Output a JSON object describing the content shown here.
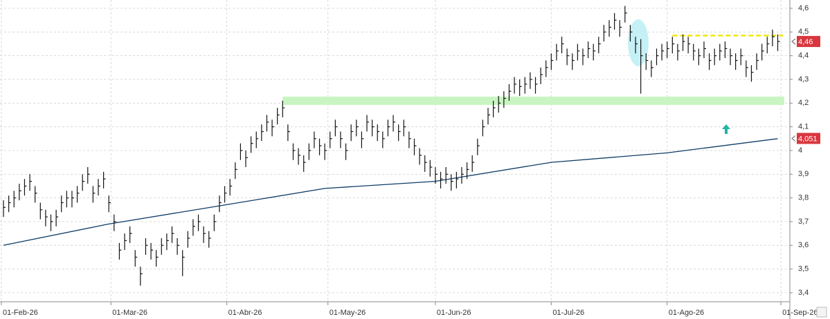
{
  "chart_data": {
    "type": "ohlc",
    "color": "#111111",
    "high": [
      3.79,
      3.81,
      3.83,
      3.86,
      3.88,
      3.9,
      3.85,
      3.78,
      3.75,
      3.73,
      3.75,
      3.81,
      3.83,
      3.83,
      3.85,
      3.9,
      3.93,
      3.85,
      3.88,
      3.91,
      3.81,
      3.73,
      3.61,
      3.65,
      3.68,
      3.58,
      3.51,
      3.63,
      3.61,
      3.58,
      3.63,
      3.65,
      3.68,
      3.63,
      3.58,
      3.66,
      3.71,
      3.73,
      3.68,
      3.66,
      3.73,
      3.81,
      3.85,
      3.88,
      3.95,
      4.03,
      4.0,
      4.06,
      4.08,
      4.11,
      4.15,
      4.13,
      4.18,
      4.21,
      4.11,
      4.03,
      4.01,
      3.98,
      4.03,
      4.08,
      4.05,
      4.03,
      4.08,
      4.13,
      4.08,
      4.03,
      4.11,
      4.13,
      4.08,
      4.15,
      4.13,
      4.11,
      4.08,
      4.13,
      4.15,
      4.11,
      4.13,
      4.08,
      4.05,
      4.01,
      3.98,
      3.96,
      3.93,
      3.91,
      3.93,
      3.9,
      3.91,
      3.93,
      3.95,
      3.98,
      4.05,
      4.13,
      4.18,
      4.21,
      4.23,
      4.25,
      4.28,
      4.31,
      4.3,
      4.31,
      4.33,
      4.31,
      4.35,
      4.38,
      4.41,
      4.45,
      4.48,
      4.43,
      4.41,
      4.45,
      4.43,
      4.46,
      4.45,
      4.48,
      4.53,
      4.55,
      4.58,
      4.55,
      4.61,
      4.53,
      4.48,
      4.47,
      4.41,
      4.38,
      4.43,
      4.45,
      4.46,
      4.48,
      4.45,
      4.49,
      4.48,
      4.45,
      4.43,
      4.46,
      4.41,
      4.43,
      4.45,
      4.46,
      4.43,
      4.41,
      4.43,
      4.38,
      4.36,
      4.41,
      4.45,
      4.48,
      4.51,
      4.49
    ],
    "low": [
      3.72,
      3.74,
      3.76,
      3.79,
      3.81,
      3.83,
      3.78,
      3.71,
      3.68,
      3.66,
      3.68,
      3.74,
      3.76,
      3.76,
      3.78,
      3.83,
      3.86,
      3.78,
      3.81,
      3.84,
      3.74,
      3.66,
      3.54,
      3.58,
      3.61,
      3.51,
      3.43,
      3.56,
      3.54,
      3.51,
      3.56,
      3.58,
      3.61,
      3.56,
      3.47,
      3.59,
      3.64,
      3.66,
      3.61,
      3.59,
      3.66,
      3.74,
      3.78,
      3.81,
      3.88,
      3.96,
      3.93,
      3.99,
      4.01,
      4.04,
      4.08,
      4.06,
      4.11,
      4.14,
      4.04,
      3.96,
      3.94,
      3.91,
      3.96,
      4.01,
      3.98,
      3.96,
      4.01,
      4.06,
      4.01,
      3.96,
      4.04,
      4.06,
      4.01,
      4.08,
      4.06,
      4.04,
      4.01,
      4.06,
      4.08,
      4.04,
      4.06,
      4.01,
      3.98,
      3.94,
      3.91,
      3.89,
      3.86,
      3.84,
      3.86,
      3.83,
      3.84,
      3.86,
      3.88,
      3.91,
      3.98,
      4.06,
      4.11,
      4.14,
      4.16,
      4.18,
      4.21,
      4.24,
      4.23,
      4.24,
      4.26,
      4.24,
      4.28,
      4.31,
      4.34,
      4.38,
      4.41,
      4.36,
      4.34,
      4.38,
      4.36,
      4.39,
      4.38,
      4.41,
      4.46,
      4.48,
      4.51,
      4.48,
      4.54,
      4.46,
      4.41,
      4.24,
      4.34,
      4.31,
      4.36,
      4.38,
      4.39,
      4.41,
      4.38,
      4.42,
      4.41,
      4.38,
      4.36,
      4.39,
      4.34,
      4.36,
      4.38,
      4.39,
      4.36,
      4.34,
      4.36,
      4.31,
      4.29,
      4.34,
      4.38,
      4.41,
      4.44,
      4.42
    ],
    "close": [
      3.76,
      3.78,
      3.8,
      3.83,
      3.85,
      3.87,
      3.82,
      3.75,
      3.72,
      3.7,
      3.72,
      3.78,
      3.8,
      3.8,
      3.82,
      3.87,
      3.9,
      3.82,
      3.85,
      3.88,
      3.78,
      3.7,
      3.58,
      3.62,
      3.65,
      3.55,
      3.48,
      3.6,
      3.58,
      3.55,
      3.6,
      3.62,
      3.65,
      3.6,
      3.55,
      3.63,
      3.68,
      3.7,
      3.65,
      3.63,
      3.7,
      3.78,
      3.82,
      3.85,
      3.92,
      4.0,
      3.97,
      4.03,
      4.05,
      4.08,
      4.12,
      4.1,
      4.15,
      4.18,
      4.08,
      4.0,
      3.98,
      3.95,
      4.0,
      4.05,
      4.02,
      4.0,
      4.05,
      4.1,
      4.05,
      4.0,
      4.08,
      4.1,
      4.05,
      4.12,
      4.1,
      4.08,
      4.05,
      4.1,
      4.12,
      4.08,
      4.1,
      4.05,
      4.02,
      3.98,
      3.95,
      3.93,
      3.9,
      3.88,
      3.9,
      3.87,
      3.88,
      3.9,
      3.92,
      3.95,
      4.02,
      4.1,
      4.15,
      4.18,
      4.2,
      4.22,
      4.25,
      4.28,
      4.27,
      4.28,
      4.3,
      4.28,
      4.32,
      4.35,
      4.38,
      4.42,
      4.45,
      4.4,
      4.38,
      4.42,
      4.4,
      4.43,
      4.42,
      4.45,
      4.5,
      4.52,
      4.55,
      4.52,
      4.58,
      4.5,
      4.45,
      4.4,
      4.38,
      4.35,
      4.4,
      4.42,
      4.43,
      4.45,
      4.42,
      4.46,
      4.45,
      4.42,
      4.4,
      4.43,
      4.38,
      4.4,
      4.42,
      4.43,
      4.4,
      4.38,
      4.4,
      4.35,
      4.33,
      4.38,
      4.42,
      4.45,
      4.48,
      4.46
    ],
    "overlays": [
      {
        "type": "line",
        "color": "#0d3b66",
        "x": [
          0,
          20,
          42,
          61,
          82,
          104,
          126,
          147
        ],
        "values": [
          3.6,
          3.69,
          3.77,
          3.84,
          3.87,
          3.95,
          3.99,
          4.05
        ]
      }
    ],
    "levels": [
      {
        "value": 4.21,
        "color": "#c9f5c3",
        "start": 53,
        "style": "band"
      },
      {
        "value": 4.485,
        "color": "#f2e600",
        "start": 127,
        "style": "dashed"
      }
    ],
    "price_labels": [
      {
        "value": 4.46,
        "label": "4,46"
      },
      {
        "value": 4.051,
        "label": "4,051"
      }
    ],
    "price_label_color": "#d9363e",
    "xlim": [
      -0.66,
      149.3
    ],
    "ylim": [
      3.362,
      4.635
    ],
    "xticks": [
      {
        "value": -0.4,
        "label": "01-Feb-26"
      },
      {
        "value": 20.4,
        "label": "01-Mar-26"
      },
      {
        "value": 42.4,
        "label": "01-Abr-26"
      },
      {
        "value": 61.6,
        "label": "01-May-26"
      },
      {
        "value": 82,
        "label": "01-Jun-26"
      },
      {
        "value": 104,
        "label": "01-Jul-26"
      },
      {
        "value": 126,
        "label": "01-Ago-26"
      },
      {
        "value": 147.6,
        "label": "01-Sep-26"
      }
    ],
    "yticks": [
      {
        "value": 4.6,
        "label": "4,6"
      },
      {
        "value": 4.5,
        "label": "4,5"
      },
      {
        "value": 4.4,
        "label": "4,4"
      },
      {
        "value": 4.3,
        "label": "4,3"
      },
      {
        "value": 4.2,
        "label": "4,2"
      },
      {
        "value": 4.1,
        "label": "4,1"
      },
      4,
      {
        "value": 3.9,
        "label": "3,9"
      },
      {
        "value": 3.8,
        "label": "3,8"
      },
      {
        "value": 3.7,
        "label": "3,7"
      },
      {
        "value": 3.6,
        "label": "3,6"
      },
      {
        "value": 3.5,
        "label": "3,5"
      },
      {
        "value": 3.4,
        "label": "3,4"
      }
    ],
    "grid": true
  }
}
